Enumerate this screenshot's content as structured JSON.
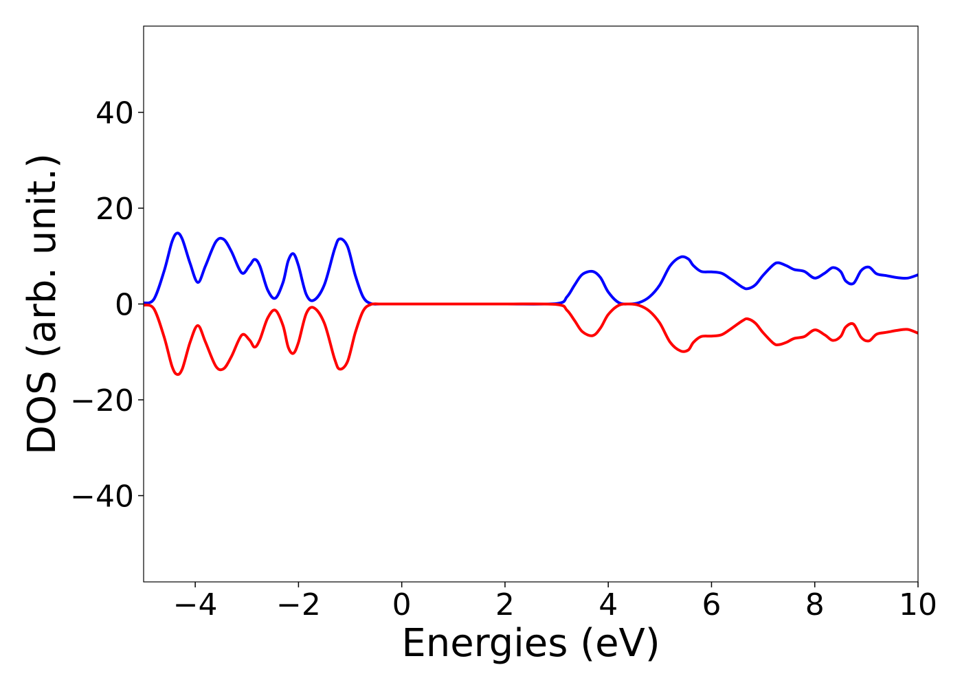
{
  "chart_data": {
    "type": "line",
    "title": "",
    "xlabel": "Energies (eV)",
    "ylabel": "DOS (arb. unit.)",
    "xlim": [
      -5,
      10
    ],
    "ylim": [
      -58,
      58
    ],
    "grid": false,
    "legend": "none",
    "x_ticks": [
      -4,
      -2,
      0,
      2,
      4,
      6,
      8,
      10
    ],
    "x_tick_labels": [
      "−4",
      "−2",
      "0",
      "2",
      "4",
      "6",
      "8",
      "10"
    ],
    "y_ticks": [
      -40,
      -20,
      0,
      20,
      40
    ],
    "y_tick_labels": [
      "−40",
      "−20",
      "0",
      "20",
      "40"
    ],
    "series": [
      {
        "color": "#0000ff",
        "x": [
          -5.0,
          -4.8,
          -4.6,
          -4.45,
          -4.35,
          -4.25,
          -4.1,
          -3.95,
          -3.8,
          -3.6,
          -3.45,
          -3.3,
          -3.1,
          -2.95,
          -2.85,
          -2.75,
          -2.6,
          -2.45,
          -2.3,
          -2.2,
          -2.1,
          -2.0,
          -1.85,
          -1.7,
          -1.5,
          -1.3,
          -1.2,
          -1.05,
          -0.9,
          -0.75,
          -0.6,
          -0.4,
          0.0,
          1.0,
          2.0,
          3.0,
          3.2,
          3.35,
          3.5,
          3.7,
          3.85,
          4.0,
          4.2,
          4.4,
          4.6,
          4.8,
          5.0,
          5.2,
          5.4,
          5.55,
          5.65,
          5.8,
          6.0,
          6.2,
          6.4,
          6.6,
          6.7,
          6.85,
          7.0,
          7.2,
          7.3,
          7.45,
          7.6,
          7.8,
          8.0,
          8.2,
          8.35,
          8.5,
          8.6,
          8.75,
          8.9,
          9.05,
          9.2,
          9.4,
          9.6,
          9.8,
          10.0
        ],
        "y": [
          0.2,
          1.0,
          7.0,
          13.0,
          14.8,
          13.5,
          8.5,
          4.5,
          8.0,
          13.0,
          13.5,
          11.0,
          6.5,
          8.0,
          9.3,
          8.0,
          3.0,
          1.2,
          4.5,
          9.0,
          10.5,
          8.0,
          2.0,
          0.8,
          4.0,
          11.5,
          13.6,
          12.0,
          6.0,
          1.5,
          0.1,
          0.0,
          0.0,
          0.0,
          0.0,
          0.1,
          1.5,
          4.0,
          6.2,
          6.8,
          5.5,
          2.5,
          0.3,
          0.0,
          0.3,
          1.5,
          4.0,
          8.0,
          9.8,
          9.4,
          8.0,
          6.8,
          6.7,
          6.4,
          5.0,
          3.5,
          3.2,
          4.0,
          6.0,
          8.2,
          8.6,
          8.0,
          7.2,
          6.8,
          5.4,
          6.5,
          7.6,
          6.8,
          4.8,
          4.3,
          7.0,
          7.7,
          6.3,
          5.9,
          5.5,
          5.4,
          6.1
        ]
      },
      {
        "color": "#ff0000",
        "x": [
          -5.0,
          -4.8,
          -4.6,
          -4.45,
          -4.35,
          -4.25,
          -4.1,
          -3.95,
          -3.8,
          -3.6,
          -3.45,
          -3.3,
          -3.1,
          -2.95,
          -2.85,
          -2.75,
          -2.6,
          -2.45,
          -2.3,
          -2.2,
          -2.1,
          -2.0,
          -1.85,
          -1.7,
          -1.5,
          -1.3,
          -1.2,
          -1.05,
          -0.9,
          -0.75,
          -0.6,
          -0.4,
          0.0,
          1.0,
          2.0,
          3.0,
          3.2,
          3.35,
          3.5,
          3.7,
          3.85,
          4.0,
          4.2,
          4.4,
          4.6,
          4.8,
          5.0,
          5.2,
          5.4,
          5.55,
          5.65,
          5.8,
          6.0,
          6.2,
          6.4,
          6.6,
          6.7,
          6.85,
          7.0,
          7.2,
          7.3,
          7.45,
          7.6,
          7.8,
          8.0,
          8.2,
          8.35,
          8.5,
          8.6,
          8.75,
          8.9,
          9.05,
          9.2,
          9.4,
          9.6,
          9.8,
          10.0
        ],
        "y": [
          -0.2,
          -1.0,
          -7.0,
          -13.0,
          -14.7,
          -13.5,
          -8.0,
          -4.5,
          -8.0,
          -13.0,
          -13.5,
          -11.0,
          -6.5,
          -7.5,
          -9.0,
          -7.5,
          -3.0,
          -1.3,
          -4.5,
          -9.0,
          -10.3,
          -8.0,
          -2.0,
          -0.8,
          -4.0,
          -11.5,
          -13.6,
          -12.0,
          -6.0,
          -1.5,
          -0.1,
          0.0,
          0.0,
          0.0,
          0.0,
          -0.1,
          -1.3,
          -3.5,
          -5.8,
          -6.6,
          -5.0,
          -2.2,
          -0.3,
          0.0,
          -0.3,
          -1.5,
          -4.0,
          -8.0,
          -9.8,
          -9.6,
          -8.0,
          -6.8,
          -6.7,
          -6.4,
          -5.0,
          -3.5,
          -3.1,
          -4.0,
          -6.0,
          -8.2,
          -8.5,
          -8.0,
          -7.2,
          -6.8,
          -5.4,
          -6.5,
          -7.6,
          -6.8,
          -4.8,
          -4.2,
          -7.0,
          -7.7,
          -6.3,
          -5.9,
          -5.5,
          -5.3,
          -6.1
        ]
      }
    ]
  }
}
